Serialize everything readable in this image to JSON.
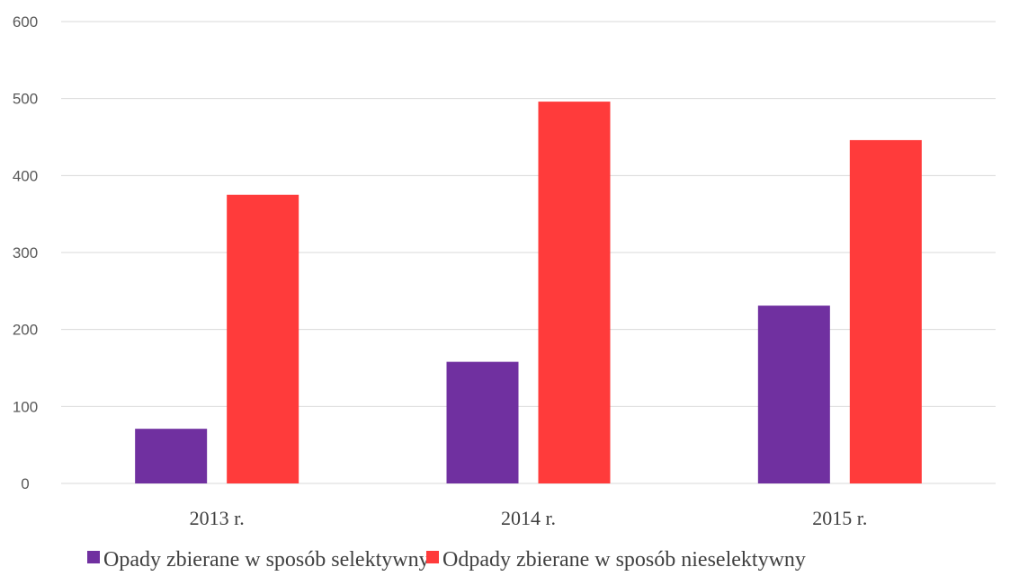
{
  "chart_data": {
    "type": "bar",
    "title": "",
    "xlabel": "",
    "ylabel": "",
    "categories": [
      "2013 r.",
      "2014 r.",
      "2015 r."
    ],
    "ylim": [
      0,
      600
    ],
    "yticks": [
      0,
      100,
      200,
      300,
      400,
      500,
      600
    ],
    "grid": true,
    "legend_position": "bottom",
    "series": [
      {
        "name": "Opady zbierane w sposób selektywny",
        "color": "#7030a0",
        "values": [
          71,
          158,
          231
        ]
      },
      {
        "name": "Odpady zbierane w sposób nieselektywny",
        "color": "#ff3b3b",
        "values": [
          375,
          496,
          446
        ]
      }
    ]
  }
}
